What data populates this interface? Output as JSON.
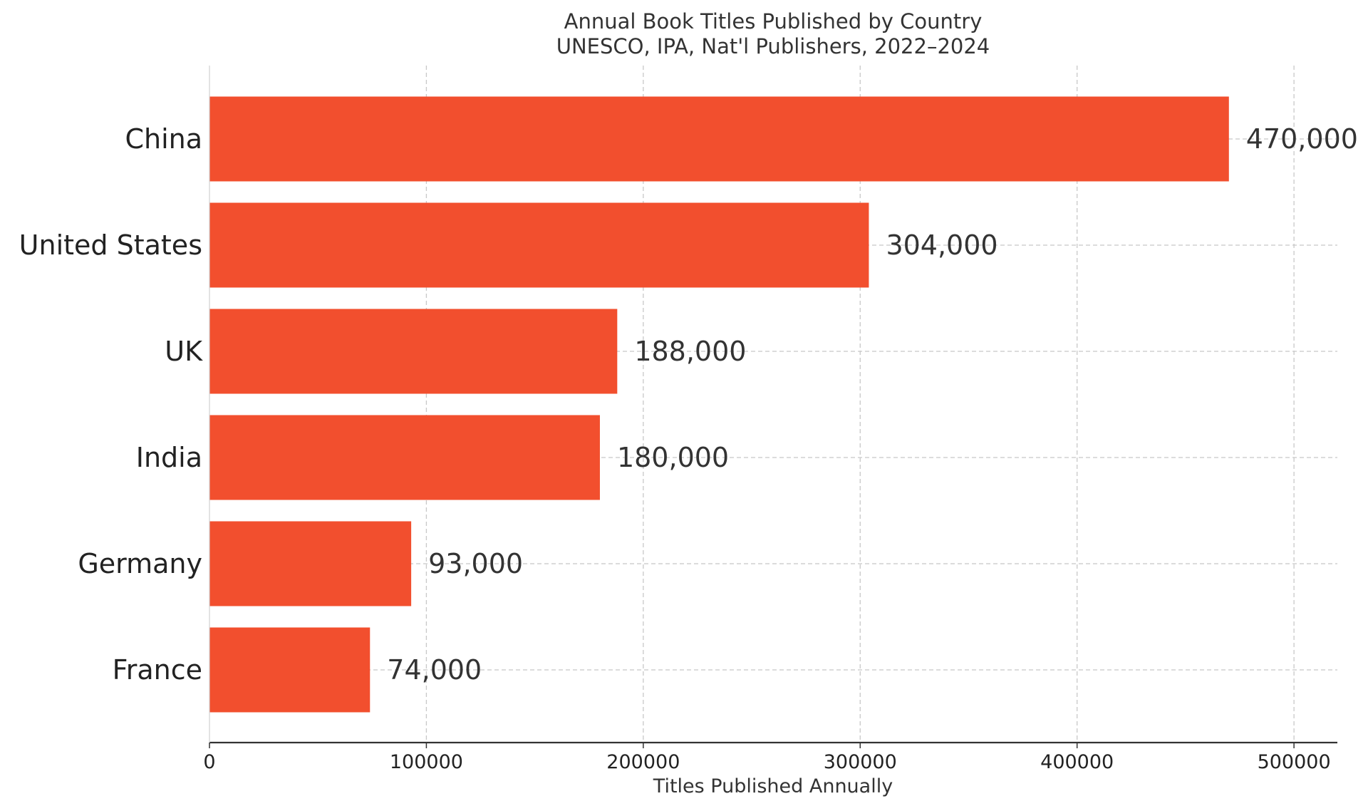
{
  "chart_data": {
    "type": "bar",
    "orientation": "horizontal",
    "title": "Annual Book Titles Published by Country",
    "subtitle": "UNESCO, IPA, Nat'l Publishers, 2022–2024",
    "xlabel": "Titles Published Annually",
    "ylabel": "",
    "categories": [
      "China",
      "United States",
      "UK",
      "India",
      "Germany",
      "France"
    ],
    "values": [
      470000,
      304000,
      188000,
      180000,
      93000,
      74000
    ],
    "value_labels": [
      "470,000",
      "304,000",
      "188,000",
      "180,000",
      "93,000",
      "74,000"
    ],
    "xlim": [
      0,
      520000
    ],
    "xticks": [
      0,
      100000,
      200000,
      300000,
      400000,
      500000
    ],
    "xtick_labels": [
      "0",
      "100000",
      "200000",
      "300000",
      "400000",
      "500000"
    ],
    "grid": true,
    "bar_color": "#f24f2e"
  }
}
